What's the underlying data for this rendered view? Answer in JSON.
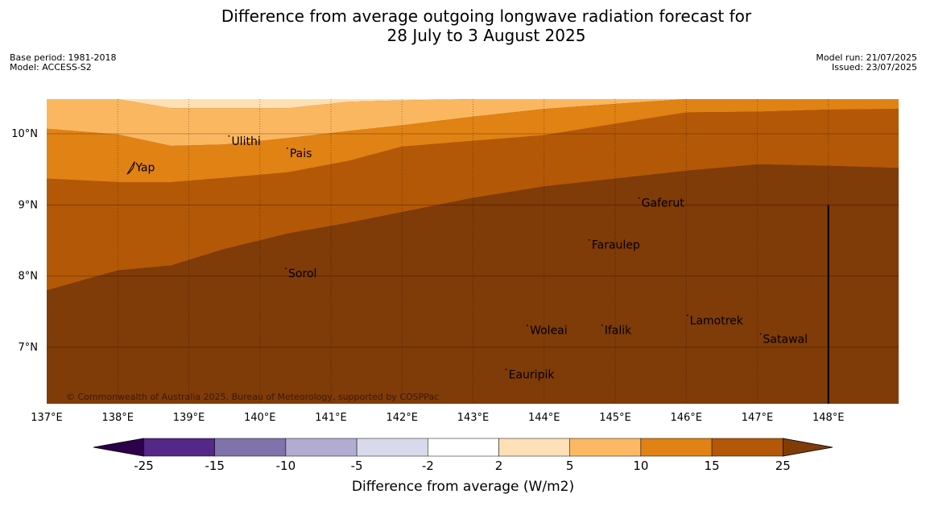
{
  "title": {
    "line1": "Difference from average outgoing longwave radiation forecast for",
    "line2": "28 July to 3 August 2025"
  },
  "meta_left": {
    "base_period": "Base period: 1981-2018",
    "model": "Model: ACCESS-S2"
  },
  "meta_right": {
    "model_run": "Model run: 21/07/2025",
    "issued": "Issued: 23/07/2025"
  },
  "map": {
    "lon_range": [
      137,
      149
    ],
    "lat_range": [
      6.2,
      10.5
    ],
    "lon_ticks": [
      {
        "value": 137,
        "label": "137°E"
      },
      {
        "value": 138,
        "label": "138°E"
      },
      {
        "value": 139,
        "label": "139°E"
      },
      {
        "value": 140,
        "label": "140°E"
      },
      {
        "value": 141,
        "label": "141°E"
      },
      {
        "value": 142,
        "label": "142°E"
      },
      {
        "value": 143,
        "label": "143°E"
      },
      {
        "value": 144,
        "label": "144°E"
      },
      {
        "value": 145,
        "label": "145°E"
      },
      {
        "value": 146,
        "label": "146°E"
      },
      {
        "value": 147,
        "label": "147°E"
      },
      {
        "value": 148,
        "label": "148°E"
      }
    ],
    "lat_ticks": [
      {
        "value": 10,
        "label": "10°N"
      },
      {
        "value": 9,
        "label": "9°N"
      },
      {
        "value": 8,
        "label": "8°N"
      },
      {
        "value": 7,
        "label": "7°N"
      }
    ],
    "contour_lons": [
      137,
      138,
      138.75,
      139.5,
      140.4,
      141.25,
      142,
      143,
      144,
      145,
      146,
      147,
      148,
      149
    ],
    "bands": [
      {
        "color": "#ffe0b2",
        "upper": [
          10.5,
          10.5,
          10.5,
          10.5,
          10.5,
          10.5,
          10.5,
          10.5,
          10.5,
          10.5,
          10.5,
          10.5,
          10.5,
          10.5
        ],
        "lower": [
          10.5,
          10.5,
          10.36,
          10.36,
          10.36,
          10.45,
          10.47,
          10.5,
          10.5,
          10.5,
          10.5,
          10.5,
          10.5,
          10.5
        ]
      },
      {
        "color": "#fbb760",
        "upper": [
          10.5,
          10.5,
          10.36,
          10.36,
          10.36,
          10.45,
          10.47,
          10.5,
          10.5,
          10.5,
          10.5,
          10.5,
          10.5,
          10.5
        ],
        "lower": [
          10.07,
          9.99,
          9.83,
          9.85,
          9.94,
          10.04,
          10.12,
          10.24,
          10.35,
          10.42,
          10.5,
          10.5,
          10.5,
          10.5
        ]
      },
      {
        "color": "#e08214",
        "upper": [
          10.07,
          9.99,
          9.83,
          9.85,
          9.94,
          10.04,
          10.12,
          10.24,
          10.35,
          10.42,
          10.5,
          10.5,
          10.5,
          10.5
        ],
        "lower": [
          9.37,
          9.32,
          9.32,
          9.38,
          9.46,
          9.62,
          9.82,
          9.9,
          9.98,
          10.14,
          10.3,
          10.31,
          10.34,
          10.35
        ]
      },
      {
        "color": "#b35806",
        "upper": [
          9.37,
          9.32,
          9.32,
          9.38,
          9.46,
          9.62,
          9.82,
          9.9,
          9.98,
          10.14,
          10.3,
          10.31,
          10.34,
          10.35
        ],
        "lower": [
          7.8,
          8.08,
          8.15,
          8.38,
          8.6,
          8.75,
          8.9,
          9.1,
          9.26,
          9.37,
          9.48,
          9.57,
          9.55,
          9.52
        ]
      },
      {
        "color": "#7f3b08",
        "upper": [
          7.8,
          8.08,
          8.15,
          8.38,
          8.6,
          8.75,
          8.9,
          9.1,
          9.26,
          9.37,
          9.48,
          9.57,
          9.55,
          9.52
        ],
        "lower": [
          6.2,
          6.2,
          6.2,
          6.2,
          6.2,
          6.2,
          6.2,
          6.2,
          6.2,
          6.2,
          6.2,
          6.2,
          6.2,
          6.2
        ]
      }
    ],
    "places": [
      {
        "name": "Ulithi",
        "lon": 139.6,
        "lat": 9.9
      },
      {
        "name": "Pais",
        "lon": 140.42,
        "lat": 9.73
      },
      {
        "name": "Yap",
        "lon": 138.25,
        "lat": 9.53
      },
      {
        "name": "Gaferut",
        "lon": 145.37,
        "lat": 9.03
      },
      {
        "name": "Faraulep",
        "lon": 144.67,
        "lat": 8.44
      },
      {
        "name": "Sorol",
        "lon": 140.4,
        "lat": 8.04
      },
      {
        "name": "Lamotrek",
        "lon": 146.05,
        "lat": 7.38
      },
      {
        "name": "Woleai",
        "lon": 143.8,
        "lat": 7.24
      },
      {
        "name": "Ifalik",
        "lon": 144.85,
        "lat": 7.24
      },
      {
        "name": "Satawal",
        "lon": 147.08,
        "lat": 7.12
      },
      {
        "name": "Eauripik",
        "lon": 143.5,
        "lat": 6.62
      }
    ],
    "vertical_line": {
      "lon": 148,
      "lat_top": 9.0,
      "lat_bottom": 6.2
    },
    "copyright": "© Commonwealth of Australia 2025, Bureau of Meteorology, supported by COSPPac"
  },
  "colorbar": {
    "label": "Difference from average (W/m2)",
    "ticks": [
      "-25",
      "-15",
      "-10",
      "-5",
      "-2",
      "2",
      "5",
      "10",
      "15",
      "25"
    ],
    "colors": [
      "#542788",
      "#8073ac",
      "#b2abd2",
      "#d8daeb",
      "#ffffff",
      "#fee0b6",
      "#fdb863",
      "#e08214",
      "#b35806"
    ],
    "under_color": "#2d004b",
    "over_color": "#7f3b08"
  }
}
